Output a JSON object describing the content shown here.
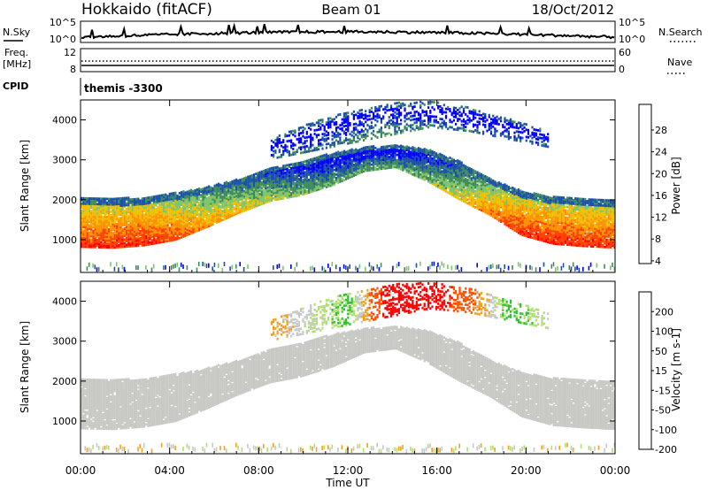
{
  "header": {
    "title_left": "Hokkaido (fitACF)",
    "title_center": "Beam 01",
    "title_right": "18/Oct/2012"
  },
  "strips": {
    "nsky_label": "N.Sky",
    "nsearch_label": "N.Search",
    "noise_ticks_left": [
      "10^5",
      "10^0"
    ],
    "noise_ticks_right": [
      "10^5",
      "10^0"
    ],
    "freq_label": "Freq.",
    "freq_unit": "[MHz]",
    "freq_ticks": [
      "12",
      "8"
    ],
    "nave_label": "Nave",
    "nave_ticks": [
      "60",
      "0"
    ],
    "cpid_label": "CPID",
    "cpid_value": "themis -3300"
  },
  "chart_data": [
    {
      "type": "heatmap",
      "panel": "power",
      "title": "",
      "ylabel": "Slant Range [km]",
      "xlabel": "",
      "x_ticks": [
        "00:00",
        "04:00",
        "08:00",
        "12:00",
        "16:00",
        "20:00",
        "00:00"
      ],
      "xlim_hours": [
        0,
        24
      ],
      "ylim": [
        180,
        4500
      ],
      "y_ticks": [
        1000,
        2000,
        3000,
        4000
      ],
      "colorbar_label": "Power [dB]",
      "colorbar_ticks": [
        "28",
        "24",
        "20",
        "16",
        "12",
        "8",
        "4"
      ],
      "colormap": [
        "#0000ff",
        "#1a50a8",
        "#3d8a5c",
        "#7dc46a",
        "#f0c000",
        "#ff9000",
        "#ff4000",
        "#ff0000"
      ],
      "bands": [
        {
          "name": "main echo",
          "start_hour": 0,
          "end_hour": 24,
          "lower_km": [
            800,
            780,
            840,
            980,
            1300,
            1650,
            1950,
            2100,
            2350,
            2700,
            2800,
            2450,
            2000,
            1600,
            1100,
            880,
            820,
            780
          ],
          "upper_km": [
            2050,
            2000,
            2050,
            2150,
            2300,
            2500,
            2800,
            2950,
            3150,
            3300,
            3350,
            3250,
            2950,
            2500,
            2200,
            2050,
            2000,
            1950
          ],
          "power_db": [
            28,
            28,
            28,
            26,
            22,
            20,
            16,
            14,
            12,
            12,
            12,
            14,
            18,
            24,
            28,
            28,
            28,
            28
          ]
        },
        {
          "name": "upper patches",
          "start_hour": 8.5,
          "end_hour": 21,
          "lower_km": [
            3000,
            3200,
            3400,
            3600,
            3800,
            3700,
            3500,
            3300
          ],
          "upper_km": [
            3500,
            3900,
            4200,
            4400,
            4450,
            4300,
            4000,
            3700
          ],
          "power_db": [
            8,
            8,
            10,
            12,
            8,
            8,
            8,
            8
          ]
        }
      ]
    },
    {
      "type": "heatmap",
      "panel": "velocity",
      "title": "",
      "ylabel": "Slant Range [km]",
      "xlabel": "Time UT",
      "x_ticks": [
        "00:00",
        "04:00",
        "08:00",
        "12:00",
        "16:00",
        "20:00",
        "00:00"
      ],
      "xlim_hours": [
        0,
        24
      ],
      "ylim": [
        180,
        4500
      ],
      "y_ticks": [
        1000,
        2000,
        3000,
        4000
      ],
      "colorbar_label": "Velocity [m s-1]",
      "colorbar_ticks": [
        "200",
        "100",
        "50",
        "15",
        "-15",
        "-50",
        "-100",
        "-200"
      ],
      "colormap": [
        "#2040c0",
        "#1c7a2e",
        "#30c030",
        "#b0e070",
        "#c8c8c8",
        "#f0a020",
        "#ff5000",
        "#ff0000"
      ],
      "ground_scatter_color": "#c8c8c4",
      "bands": [
        {
          "name": "ground scatter",
          "start_hour": 0,
          "end_hour": 24,
          "lower_km": [
            800,
            780,
            840,
            980,
            1300,
            1650,
            1950,
            2100,
            2350,
            2700,
            2800,
            2450,
            2000,
            1600,
            1100,
            880,
            820,
            780
          ],
          "upper_km": [
            2050,
            2000,
            2050,
            2150,
            2300,
            2500,
            2800,
            2950,
            3150,
            3300,
            3350,
            3250,
            2950,
            2500,
            2200,
            2050,
            2000,
            1950
          ],
          "velocity_ms": [
            0,
            0,
            0,
            0,
            0,
            0,
            0,
            0,
            0,
            0,
            0,
            0,
            0,
            0,
            0,
            0,
            0,
            0
          ]
        },
        {
          "name": "upper patches",
          "start_hour": 8.5,
          "end_hour": 21,
          "lower_km": [
            3000,
            3200,
            3400,
            3600,
            3800,
            3700,
            3500,
            3300
          ],
          "upper_km": [
            3500,
            3900,
            4200,
            4400,
            4450,
            4300,
            4000,
            3700
          ],
          "velocity_ms": [
            -50,
            0,
            40,
            -200,
            -200,
            -100,
            50,
            0
          ]
        }
      ]
    }
  ]
}
